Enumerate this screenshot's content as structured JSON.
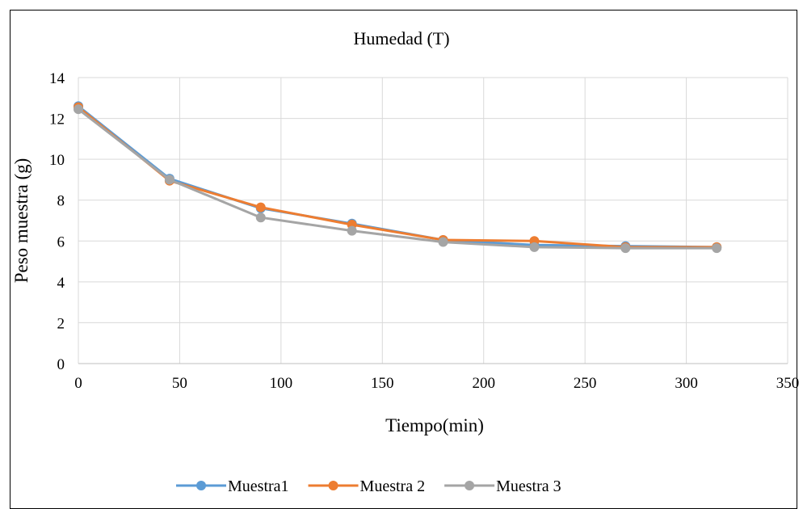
{
  "chart_data": {
    "type": "line",
    "title": "Humedad (T)",
    "xlabel": "Tiempo(min)",
    "ylabel": "Peso muestra (g)",
    "xlim": [
      0,
      350
    ],
    "ylim": [
      0,
      14
    ],
    "xticks": [
      0,
      50,
      100,
      150,
      200,
      250,
      300,
      350
    ],
    "yticks": [
      0,
      2,
      4,
      6,
      8,
      10,
      12,
      14
    ],
    "grid": true,
    "legend_position": "bottom",
    "x": [
      0,
      45,
      90,
      135,
      180,
      225,
      270,
      315
    ],
    "series": [
      {
        "name": "Muestra1",
        "color": "#5B9BD5",
        "values": [
          12.6,
          9.05,
          7.6,
          6.85,
          6.05,
          5.8,
          5.75,
          5.7
        ]
      },
      {
        "name": "Muestra 2",
        "color": "#ED7D31",
        "values": [
          12.55,
          8.95,
          7.65,
          6.8,
          6.05,
          6.0,
          5.7,
          5.7
        ]
      },
      {
        "name": "Muestra 3",
        "color": "#A5A5A5",
        "values": [
          12.45,
          9.0,
          7.15,
          6.5,
          5.95,
          5.7,
          5.65,
          5.65
        ]
      }
    ]
  }
}
